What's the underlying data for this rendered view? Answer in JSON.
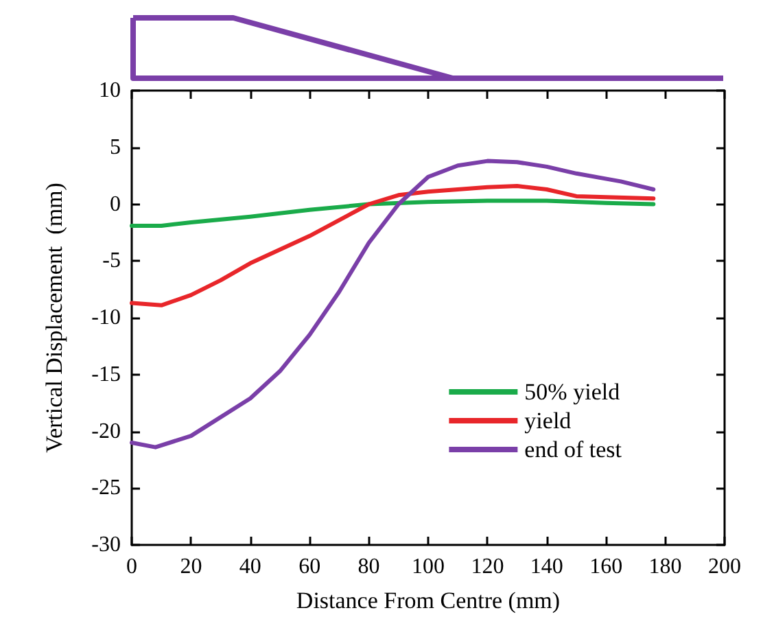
{
  "chart_data": {
    "type": "line",
    "xlabel": "Distance From Centre (mm)",
    "ylabel": "Vertical Displacement  (mm)",
    "xlim": [
      0,
      200
    ],
    "xticks": [
      0,
      20,
      40,
      60,
      80,
      100,
      120,
      140,
      160,
      180,
      200
    ],
    "ylim": [
      -30,
      10
    ],
    "yticks": [
      -30,
      -25,
      -20,
      -15,
      -10,
      -5,
      0,
      5,
      10
    ],
    "grid": false,
    "legend": "bottom right",
    "marker": "none",
    "line_style": "solid",
    "series": [
      {
        "name": "50% yield",
        "color": "#1aab4a",
        "x": [
          0,
          10,
          20,
          40,
          60,
          80,
          100,
          120,
          140,
          160,
          176
        ],
        "values": [
          -1.9,
          -1.9,
          -1.6,
          -1.1,
          -0.5,
          0,
          0.2,
          0.3,
          0.3,
          0.1,
          0
        ]
      },
      {
        "name": "yield",
        "color": "#e8262a",
        "x": [
          0,
          10,
          20,
          30,
          40,
          60,
          80,
          90,
          100,
          120,
          130,
          140,
          150,
          176
        ],
        "values": [
          -8.7,
          -8.9,
          -8.0,
          -6.7,
          -5.2,
          -2.8,
          0,
          0.8,
          1.1,
          1.5,
          1.6,
          1.3,
          0.7,
          0.5
        ]
      },
      {
        "name": "end of test",
        "color": "#7a3fa8",
        "x": [
          0,
          8,
          20,
          40,
          50,
          60,
          70,
          80,
          90,
          100,
          110,
          120,
          130,
          140,
          150,
          165,
          176
        ],
        "values": [
          -21,
          -21.4,
          -20.4,
          -17.1,
          -14.7,
          -11.5,
          -7.7,
          -3.4,
          0,
          2.4,
          3.4,
          3.8,
          3.7,
          3.3,
          2.7,
          2.0,
          1.3
        ]
      }
    ]
  }
}
